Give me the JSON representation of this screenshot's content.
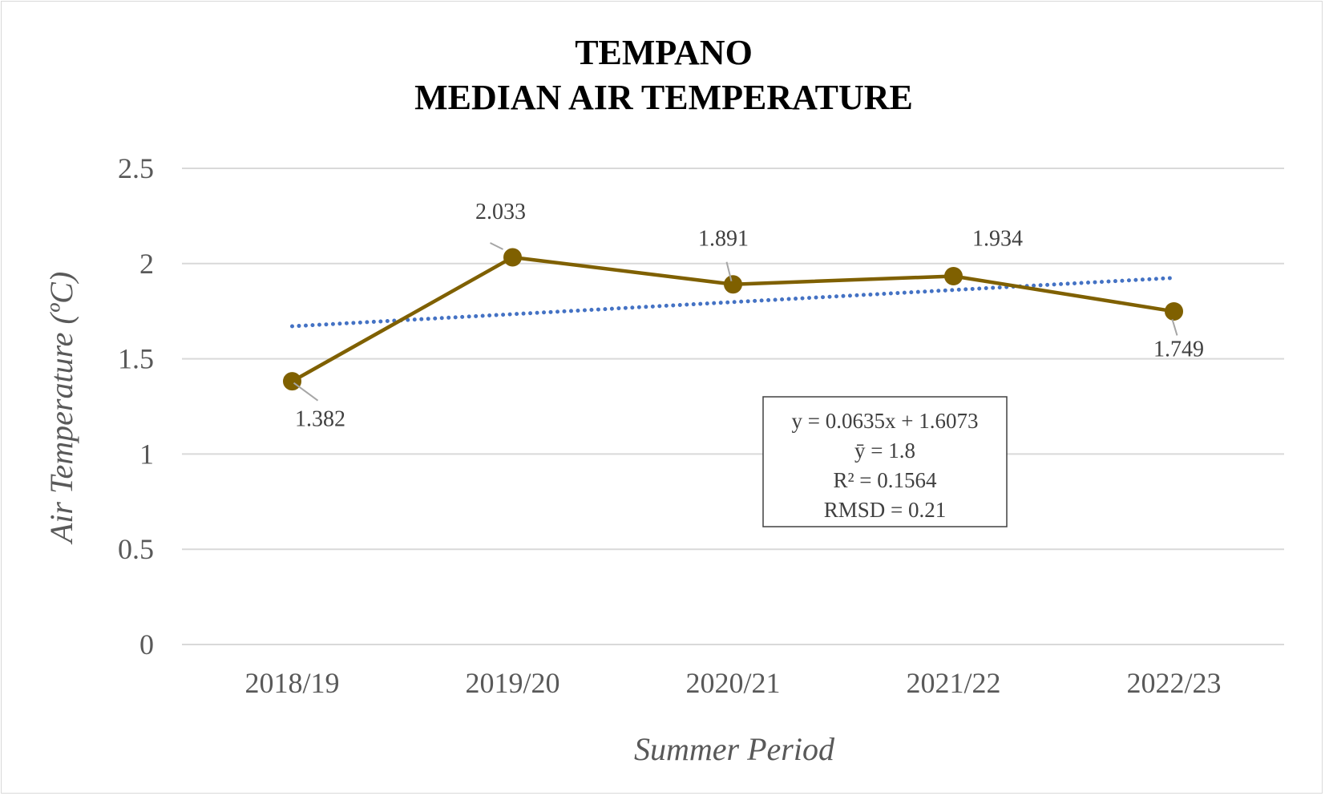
{
  "chart_data": {
    "type": "line",
    "title_lines": [
      "TEMPANO",
      "MEDIAN AIR TEMPERATURE"
    ],
    "xlabel": "Summer Period",
    "ylabel": "Air Temperature (ºC)",
    "categories": [
      "2018/19",
      "2019/20",
      "2020/21",
      "2021/22",
      "2022/23"
    ],
    "yticks": [
      0,
      0.5,
      1,
      1.5,
      2,
      2.5
    ],
    "ytick_labels": [
      "0",
      "0.5",
      "1",
      "1.5",
      "2",
      "2.5"
    ],
    "ylim": [
      0,
      2.5
    ],
    "grid": true,
    "legend": "none",
    "series": [
      {
        "values": [
          1.382,
          2.033,
          1.891,
          1.934,
          1.749
        ],
        "data_labels": [
          "1.382",
          "2.033",
          "1.891",
          "1.934",
          "1.749"
        ],
        "color": "#7F6000",
        "marker": "circle"
      }
    ],
    "trendline": {
      "type": "linear",
      "slope": 0.0635,
      "intercept": 1.6073,
      "color": "#4472C4",
      "style": "dotted"
    },
    "annotation": {
      "lines": [
        "y = 0.0635x + 1.6073",
        "ȳ = 1.8",
        "R² = 0.1564",
        "RMSD = 0.21"
      ]
    }
  }
}
